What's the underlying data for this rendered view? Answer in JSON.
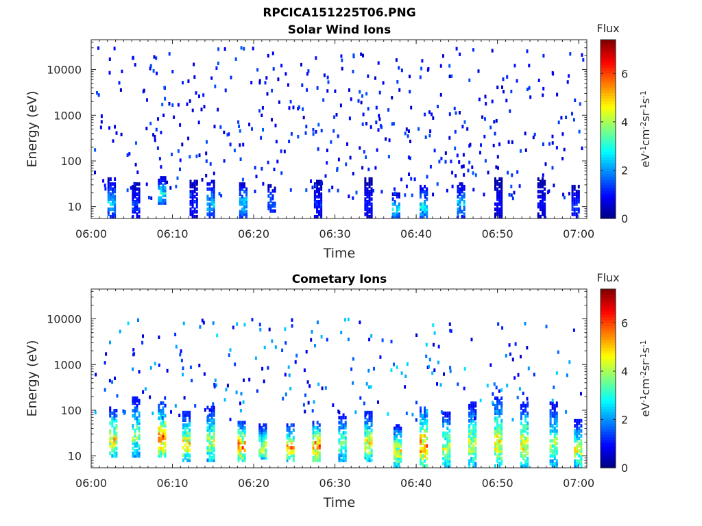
{
  "figure": {
    "title": "RPCICA151225T06.PNG"
  },
  "colors": {
    "colormap": "jet",
    "axis": "#262626",
    "background": "#ffffff"
  },
  "chart_data": [
    {
      "type": "heatmap",
      "title": "Solar Wind Ions",
      "xlabel": "Time",
      "ylabel": "Energy (eV)",
      "x_ticks": [
        "06:00",
        "06:10",
        "06:20",
        "06:30",
        "06:40",
        "06:50",
        "07:00"
      ],
      "x_range_minutes": [
        0,
        61
      ],
      "y_ticks": [
        {
          "value": 10,
          "label": "10"
        },
        {
          "value": 100,
          "label": "100"
        },
        {
          "value": 1000,
          "label": "1000"
        },
        {
          "value": 10000,
          "label": "10000"
        }
      ],
      "y_scale": "log",
      "ylim": [
        5.5,
        45000
      ],
      "colorbar": {
        "title": "Flux",
        "unit_base": [
          "eV",
          "cm",
          "sr",
          "s"
        ],
        "unit_exp": [
          "-1",
          "-2",
          "-1",
          "-1"
        ],
        "range": [
          0,
          7.4
        ],
        "ticks": [
          "0",
          "2",
          "4",
          "6"
        ]
      },
      "summary": "sparse low-level flux (mostly 0.5–1.5) scattered across 10–30000 eV; moderate flux 2–4 near 10–60 eV",
      "bursts": [
        {
          "t": 2.4,
          "emin": 6,
          "emax": 45,
          "level": 2.5
        },
        {
          "t": 5.4,
          "emin": 6,
          "emax": 35,
          "level": 1.5
        },
        {
          "t": 8.6,
          "emin": 12,
          "emax": 45,
          "level": 3.0
        },
        {
          "t": 12.5,
          "emin": 6,
          "emax": 40,
          "level": 1.2
        },
        {
          "t": 14.6,
          "emin": 6,
          "emax": 40,
          "level": 2.5
        },
        {
          "t": 18.6,
          "emin": 6,
          "emax": 35,
          "level": 2.8
        },
        {
          "t": 22.1,
          "emin": 8,
          "emax": 30,
          "level": 2.0
        },
        {
          "t": 27.8,
          "emin": 6,
          "emax": 40,
          "level": 1.3
        },
        {
          "t": 34.0,
          "emin": 6,
          "emax": 45,
          "level": 1.2
        },
        {
          "t": 37.4,
          "emin": 6,
          "emax": 20,
          "level": 3.0
        },
        {
          "t": 40.8,
          "emin": 6,
          "emax": 30,
          "level": 3.0
        },
        {
          "t": 45.4,
          "emin": 6,
          "emax": 35,
          "level": 2.5
        },
        {
          "t": 50.0,
          "emin": 6,
          "emax": 45,
          "level": 1.0
        },
        {
          "t": 55.3,
          "emin": 6,
          "emax": 45,
          "level": 1.0
        },
        {
          "t": 59.5,
          "emin": 6,
          "emax": 30,
          "level": 1.5
        }
      ],
      "sparse": {
        "count": 460,
        "emin": 15,
        "emax": 30000,
        "lo": 0.5,
        "hi": 1.6,
        "seed": 7
      }
    },
    {
      "type": "heatmap",
      "title": "Cometary Ions",
      "xlabel": "Time",
      "ylabel": "Energy (eV)",
      "x_ticks": [
        "06:00",
        "06:10",
        "06:20",
        "06:30",
        "06:40",
        "06:50",
        "07:00"
      ],
      "x_range_minutes": [
        0,
        61
      ],
      "y_ticks": [
        {
          "value": 10,
          "label": "10"
        },
        {
          "value": 100,
          "label": "100"
        },
        {
          "value": 1000,
          "label": "1000"
        },
        {
          "value": 10000,
          "label": "10000"
        }
      ],
      "y_scale": "log",
      "ylim": [
        5.5,
        45000
      ],
      "colorbar": {
        "title": "Flux",
        "unit_base": [
          "eV",
          "cm",
          "sr",
          "s"
        ],
        "unit_exp": [
          "-1",
          "-2",
          "-1",
          "-1"
        ],
        "range": [
          0,
          7.4
        ],
        "ticks": [
          "0",
          "2",
          "4",
          "6"
        ]
      },
      "summary": "periodic cometary ion bursts peaking ~5–6 between 15 and 45 eV, extending up to ~200 eV; sparse low flux above",
      "bursts": [
        {
          "t": 2.6,
          "emin": 10,
          "emax": 120,
          "level": 5.0
        },
        {
          "t": 5.4,
          "emin": 10,
          "emax": 200,
          "level": 4.0
        },
        {
          "t": 8.6,
          "emin": 10,
          "emax": 150,
          "level": 6.0
        },
        {
          "t": 11.6,
          "emin": 8,
          "emax": 90,
          "level": 5.0
        },
        {
          "t": 14.6,
          "emin": 8,
          "emax": 120,
          "level": 4.5
        },
        {
          "t": 18.4,
          "emin": 8,
          "emax": 60,
          "level": 6.0
        },
        {
          "t": 21.0,
          "emin": 8,
          "emax": 50,
          "level": 4.5
        },
        {
          "t": 24.4,
          "emin": 8,
          "emax": 50,
          "level": 5.5
        },
        {
          "t": 27.6,
          "emin": 8,
          "emax": 60,
          "level": 6.0
        },
        {
          "t": 30.8,
          "emin": 8,
          "emax": 90,
          "level": 4.0
        },
        {
          "t": 34.0,
          "emin": 8,
          "emax": 90,
          "level": 5.0
        },
        {
          "t": 37.6,
          "emin": 6,
          "emax": 50,
          "level": 4.8
        },
        {
          "t": 40.8,
          "emin": 6,
          "emax": 120,
          "level": 5.8
        },
        {
          "t": 43.6,
          "emin": 6,
          "emax": 90,
          "level": 4.5
        },
        {
          "t": 46.8,
          "emin": 6,
          "emax": 150,
          "level": 4.5
        },
        {
          "t": 50.0,
          "emin": 6,
          "emax": 200,
          "level": 5.0
        },
        {
          "t": 53.2,
          "emin": 6,
          "emax": 150,
          "level": 5.0
        },
        {
          "t": 56.8,
          "emin": 6,
          "emax": 150,
          "level": 4.0
        },
        {
          "t": 59.8,
          "emin": 6,
          "emax": 60,
          "level": 4.5
        }
      ],
      "sparse": {
        "count": 230,
        "emin": 60,
        "emax": 10000,
        "lo": 0.5,
        "hi": 2.6,
        "seed": 13
      }
    }
  ]
}
